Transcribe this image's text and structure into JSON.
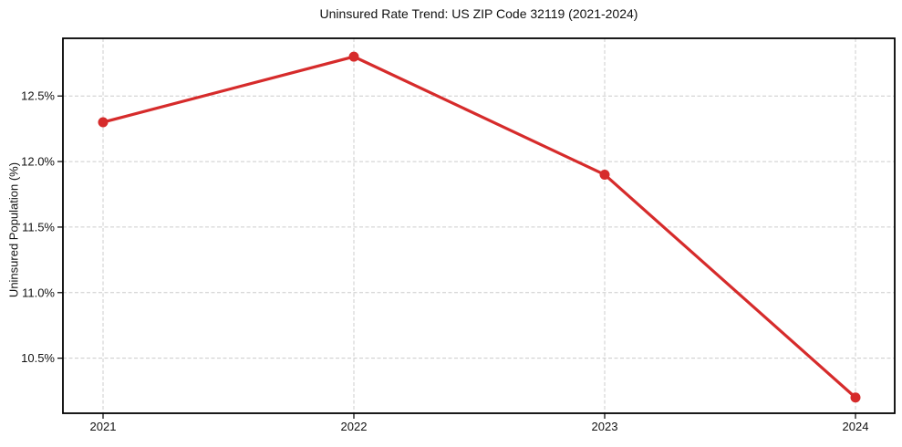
{
  "chart_data": {
    "type": "line",
    "title": "Uninsured Rate Trend: US ZIP Code 32119 (2021-2024)",
    "ylabel": "Uninsured Population (%)",
    "xlabel": "",
    "categories": [
      "2021",
      "2022",
      "2023",
      "2024"
    ],
    "values": [
      12.3,
      12.8,
      11.9,
      10.2
    ],
    "unit": "%",
    "ytick_values": [
      10.5,
      11.0,
      11.5,
      12.0,
      12.5
    ],
    "ytick_labels": [
      "10.5%",
      "11.0%",
      "11.5%",
      "12.0%",
      "12.5%"
    ],
    "ylim": [
      10.08,
      12.94
    ],
    "grid": "dashed-both-axes",
    "legend": "none",
    "line_color": "#d62b2b",
    "marker": "circle",
    "grid_color": "#cccccc",
    "spine_color": "#000000",
    "background": "#ffffff"
  }
}
